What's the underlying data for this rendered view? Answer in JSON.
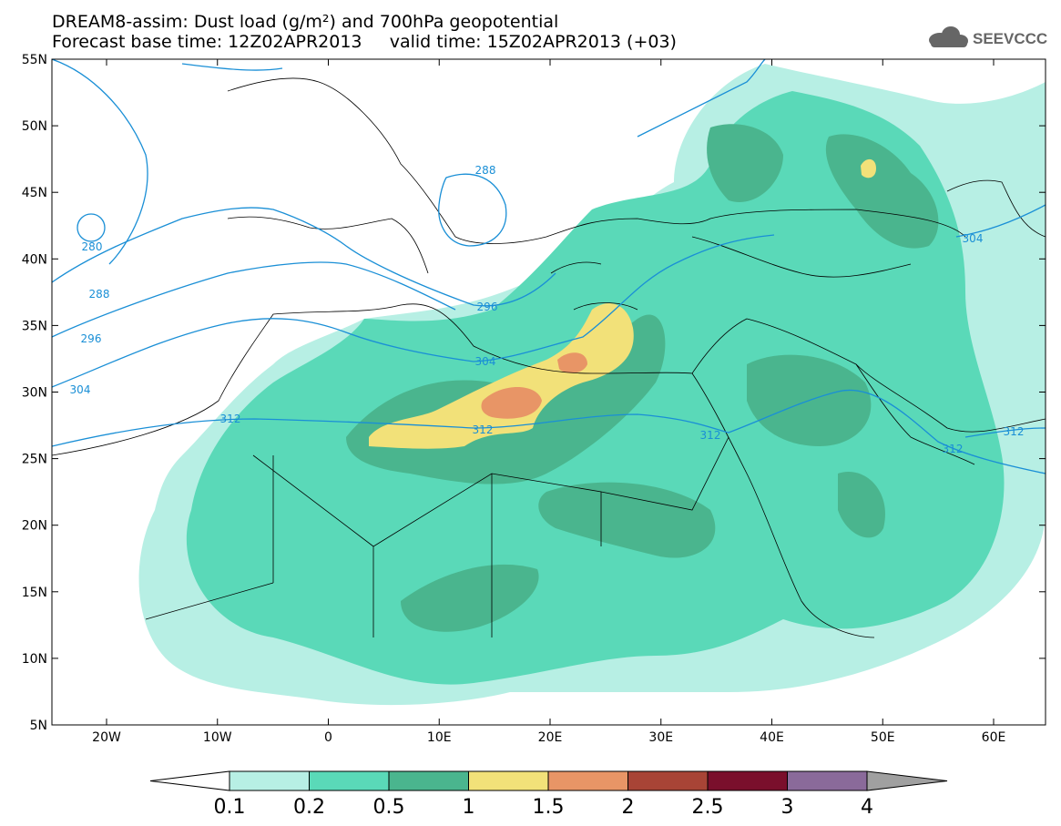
{
  "header": {
    "title_line1": "DREAM8-assim: Dust load (g/m²) and 700hPa geopotential",
    "title_line2": "Forecast base time: 12Z02APR2013     valid time: 15Z02APR2013 (+03)",
    "logo_text": "SEEVCCC"
  },
  "map": {
    "lat_labels": [
      "55N",
      "50N",
      "45N",
      "40N",
      "35N",
      "30N",
      "25N",
      "20N",
      "15N",
      "10N",
      "5N"
    ],
    "lon_labels": [
      "20W",
      "10W",
      "0",
      "10E",
      "20E",
      "30E",
      "40E",
      "50E",
      "60E"
    ],
    "contour_labels": [
      "280",
      "288",
      "288",
      "296",
      "296",
      "304",
      "304",
      "312",
      "312",
      "312",
      "312",
      "312",
      "304"
    ],
    "contour_color": "#1a8fd6"
  },
  "colorbar": {
    "labels": [
      "0.1",
      "0.2",
      "0.5",
      "1",
      "1.5",
      "2",
      "2.5",
      "3",
      "4"
    ],
    "colors": [
      "#b7efe4",
      "#5ad9b8",
      "#4ab58e",
      "#f2e179",
      "#e89566",
      "#a84436",
      "#7a0f2c",
      "#8a6a9a",
      "#a0a0a0"
    ]
  }
}
